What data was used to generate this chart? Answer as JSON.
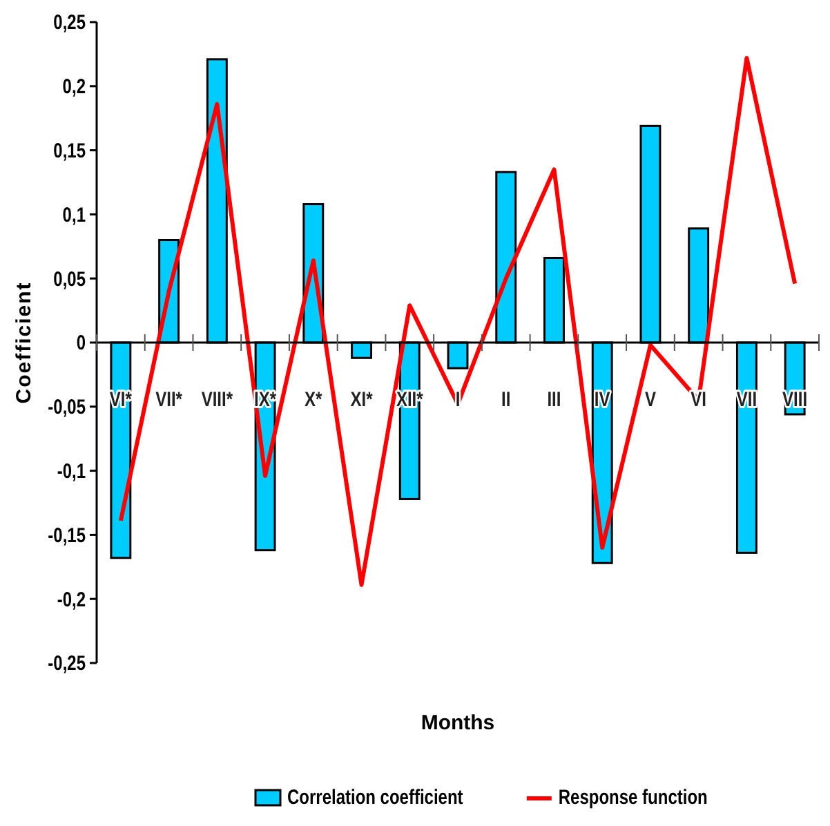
{
  "chart_data": {
    "type": "bar",
    "xlabel": "Months",
    "ylabel": "Coefficient",
    "categories": [
      "VI*",
      "VII*",
      "VIII*",
      "IX*",
      "X*",
      "XI*",
      "XII*",
      "I",
      "II",
      "III",
      "IV",
      "V",
      "VI",
      "VII",
      "VIII"
    ],
    "series": [
      {
        "name": "Correlation coefficient",
        "color": "#00ccff",
        "values": [
          -0.168,
          0.08,
          0.221,
          -0.162,
          0.108,
          -0.012,
          -0.122,
          -0.02,
          0.133,
          0.066,
          -0.172,
          0.169,
          0.089,
          -0.164,
          -0.056
        ]
      },
      {
        "name": "Response function",
        "type": "line",
        "color": "#ff0000",
        "values": [
          -0.139,
          0.04,
          0.186,
          -0.104,
          0.064,
          -0.189,
          0.029,
          -0.048,
          0.05,
          0.135,
          -0.16,
          -0.002,
          -0.045,
          0.222,
          0.046
        ]
      }
    ],
    "ylim": [
      -0.25,
      0.25
    ],
    "yticks": [
      {
        "value": -0.25,
        "label": "-0,25"
      },
      {
        "value": -0.2,
        "label": "-0,2"
      },
      {
        "value": -0.15,
        "label": "-0,15"
      },
      {
        "value": -0.1,
        "label": "-0,1"
      },
      {
        "value": -0.05,
        "label": "-0,05"
      },
      {
        "value": 0,
        "label": "0"
      },
      {
        "value": 0.05,
        "label": "0,05"
      },
      {
        "value": 0.1,
        "label": "0,1"
      },
      {
        "value": 0.15,
        "label": "0,15"
      },
      {
        "value": 0.2,
        "label": "0,2"
      },
      {
        "value": 0.25,
        "label": "0,25"
      }
    ],
    "legend": "bottom",
    "grid": false
  }
}
